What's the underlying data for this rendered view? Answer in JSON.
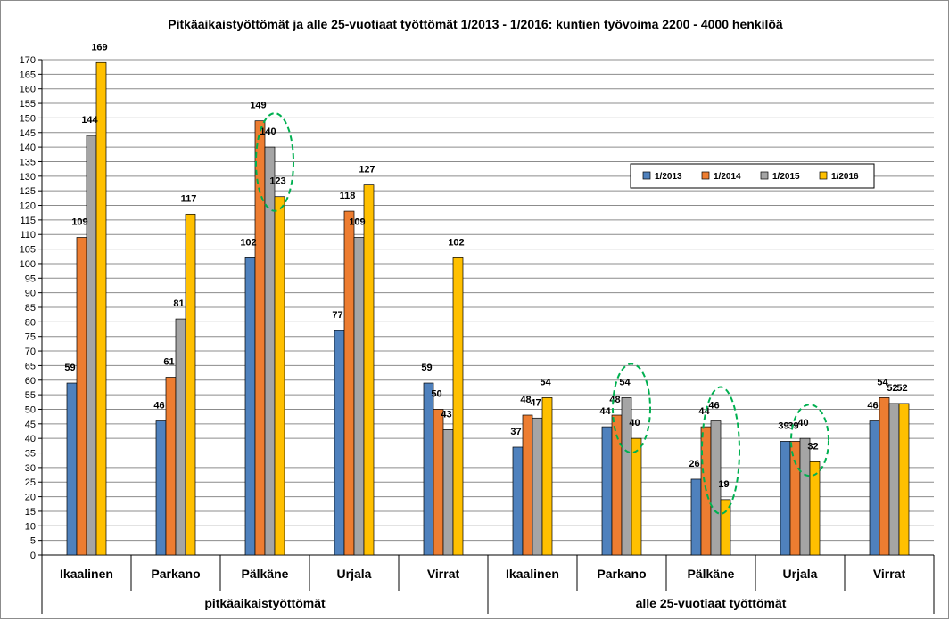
{
  "chart_data": {
    "type": "bar",
    "title": "Pitkäaikaistyöttömät ja alle 25-vuotiaat työttömät 1/2013 - 1/2016: kuntien työvoima 2200 - 4000 henkilöä",
    "categories": [
      "Ikaalinen",
      "Parkano",
      "Pälkäne",
      "Urjala",
      "Virrat",
      "Ikaalinen",
      "Parkano",
      "Pälkäne",
      "Urjala",
      "Virrat"
    ],
    "groups": [
      {
        "label": "pitkäaikaistyöttömät",
        "count": 5
      },
      {
        "label": "alle 25-vuotiaat työttömät",
        "count": 5
      }
    ],
    "series": [
      {
        "name": "1/2013",
        "color": "#4f81bd",
        "values": [
          59,
          46,
          102,
          77,
          59,
          37,
          44,
          26,
          39,
          46
        ]
      },
      {
        "name": "1/2014",
        "color": "#ed7d31",
        "values": [
          109,
          61,
          149,
          118,
          50,
          48,
          48,
          44,
          39,
          54
        ]
      },
      {
        "name": "1/2015",
        "color": "#a5a5a5",
        "values": [
          144,
          81,
          140,
          109,
          43,
          47,
          54,
          46,
          40,
          52
        ]
      },
      {
        "name": "1/2016",
        "color": "#ffc000",
        "values": [
          169,
          117,
          123,
          127,
          102,
          54,
          40,
          19,
          32,
          52
        ]
      }
    ],
    "ylim": [
      0,
      170
    ],
    "ytick_step": 5,
    "grid": true,
    "legend": "right",
    "highlights": [
      {
        "category_index": 2,
        "from_series": 2,
        "to_series": 3
      },
      {
        "category_index": 6,
        "from_series": 2,
        "to_series": 3
      },
      {
        "category_index": 7,
        "from_series": 2,
        "to_series": 3
      },
      {
        "category_index": 8,
        "from_series": 2,
        "to_series": 3
      }
    ],
    "highlight_color": "#00b050"
  }
}
